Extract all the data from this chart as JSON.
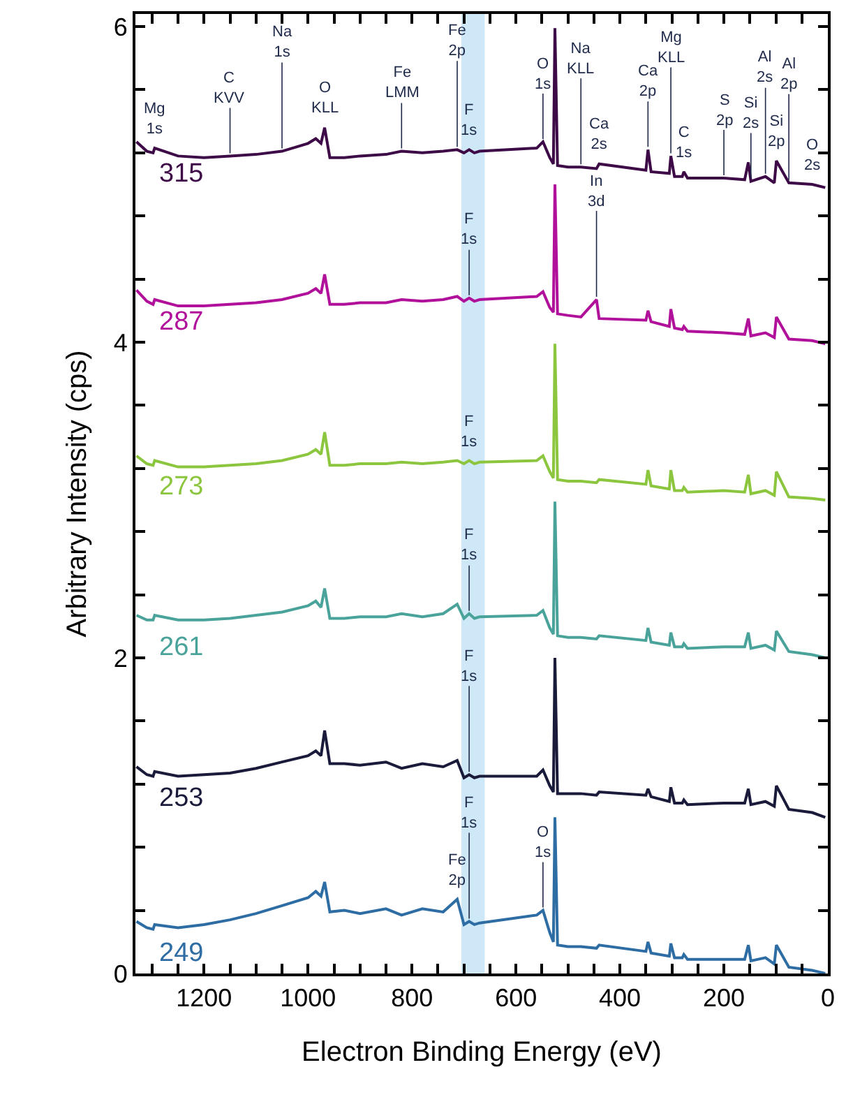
{
  "chart_data": {
    "type": "line",
    "xlabel": "Electron Binding Energy (eV)",
    "ylabel": "Arbitrary Intensity (cps)",
    "xlim": [
      1332,
      0
    ],
    "ylim": [
      0,
      6.08
    ],
    "xticks": [
      {
        "value": 1300,
        "label": null
      },
      {
        "value": 1250,
        "label": null
      },
      1200,
      {
        "value": 1150,
        "label": null
      },
      {
        "value": 1100,
        "label": null
      },
      {
        "value": 1050,
        "label": null
      },
      1000,
      {
        "value": 950,
        "label": null
      },
      {
        "value": 900,
        "label": null
      },
      {
        "value": 850,
        "label": null
      },
      800,
      {
        "value": 750,
        "label": null
      },
      {
        "value": 700,
        "label": null
      },
      {
        "value": 650,
        "label": null
      },
      600,
      {
        "value": 550,
        "label": null
      },
      {
        "value": 500,
        "label": null
      },
      {
        "value": 450,
        "label": null
      },
      400,
      {
        "value": 350,
        "label": null
      },
      {
        "value": 300,
        "label": null
      },
      {
        "value": 250,
        "label": null
      },
      200,
      {
        "value": 150,
        "label": null
      },
      {
        "value": 100,
        "label": null
      },
      {
        "value": 50,
        "label": null
      },
      0
    ],
    "yticks": [
      0,
      {
        "value": 0.4,
        "label": null
      },
      {
        "value": 0.8,
        "label": null
      },
      {
        "value": 1.2,
        "label": null
      },
      {
        "value": 1.6,
        "label": null
      },
      2,
      {
        "value": 2.4,
        "label": null
      },
      {
        "value": 2.8,
        "label": null
      },
      {
        "value": 3.2,
        "label": null
      },
      {
        "value": 3.6,
        "label": null
      },
      4,
      {
        "value": 4.4,
        "label": null
      },
      {
        "value": 4.8,
        "label": null
      },
      {
        "value": 5.2,
        "label": null
      },
      {
        "value": 5.6,
        "label": null
      },
      6
    ],
    "grid": false,
    "legend": false,
    "marker": "none",
    "line_style": "solid",
    "x": [
      1330,
      1310,
      1298,
      1295,
      1250,
      1200,
      1150,
      1100,
      1050,
      1000,
      985,
      975,
      968,
      958,
      930,
      900,
      850,
      820,
      780,
      740,
      713,
      700,
      690,
      680,
      670,
      560,
      548,
      535,
      528,
      525,
      520,
      500,
      475,
      445,
      440,
      350,
      346,
      340,
      305,
      302,
      295,
      280,
      277,
      270,
      200,
      160,
      153,
      148,
      120,
      103,
      99,
      75,
      30,
      5
    ],
    "series": [
      {
        "name": "315",
        "color": "#3d0a47",
        "values": [
          5.27,
          5.21,
          5.2,
          5.23,
          5.18,
          5.17,
          5.18,
          5.19,
          5.21,
          5.26,
          5.29,
          5.26,
          5.36,
          5.17,
          5.17,
          5.18,
          5.19,
          5.21,
          5.2,
          5.21,
          5.22,
          5.2,
          5.22,
          5.2,
          5.21,
          5.23,
          5.27,
          5.17,
          5.13,
          5.99,
          5.12,
          5.11,
          5.11,
          5.1,
          5.13,
          5.09,
          5.22,
          5.08,
          5.07,
          5.18,
          5.05,
          5.05,
          5.08,
          5.04,
          5.04,
          5.03,
          5.14,
          5.02,
          5.05,
          5.01,
          5.15,
          5.01,
          5.0,
          4.98
        ]
      },
      {
        "name": "287",
        "color": "#b0109a",
        "values": [
          4.33,
          4.26,
          4.24,
          4.27,
          4.23,
          4.23,
          4.24,
          4.25,
          4.27,
          4.31,
          4.34,
          4.31,
          4.43,
          4.24,
          4.24,
          4.25,
          4.25,
          4.27,
          4.26,
          4.27,
          4.29,
          4.26,
          4.28,
          4.26,
          4.27,
          4.29,
          4.32,
          4.22,
          4.19,
          5.0,
          4.18,
          4.17,
          4.16,
          4.27,
          4.15,
          4.14,
          4.2,
          4.13,
          4.1,
          4.21,
          4.09,
          4.08,
          4.1,
          4.07,
          4.06,
          4.05,
          4.15,
          4.04,
          4.06,
          4.03,
          4.16,
          4.02,
          4.01,
          3.99
        ]
      },
      {
        "name": "273",
        "color": "#8cc63f",
        "values": [
          3.28,
          3.23,
          3.22,
          3.25,
          3.21,
          3.21,
          3.22,
          3.23,
          3.25,
          3.29,
          3.32,
          3.29,
          3.43,
          3.22,
          3.22,
          3.23,
          3.23,
          3.24,
          3.23,
          3.24,
          3.25,
          3.23,
          3.25,
          3.23,
          3.24,
          3.25,
          3.28,
          3.18,
          3.14,
          3.99,
          3.13,
          3.12,
          3.12,
          3.11,
          3.13,
          3.1,
          3.19,
          3.09,
          3.07,
          3.19,
          3.06,
          3.06,
          3.08,
          3.05,
          3.06,
          3.05,
          3.16,
          3.04,
          3.06,
          3.03,
          3.18,
          3.02,
          3.01,
          3.0
        ]
      },
      {
        "name": "261",
        "color": "#4aa39a",
        "values": [
          2.27,
          2.24,
          2.24,
          2.27,
          2.24,
          2.24,
          2.25,
          2.27,
          2.29,
          2.33,
          2.36,
          2.32,
          2.44,
          2.25,
          2.25,
          2.26,
          2.26,
          2.28,
          2.26,
          2.28,
          2.34,
          2.25,
          2.28,
          2.25,
          2.26,
          2.27,
          2.3,
          2.19,
          2.15,
          2.99,
          2.14,
          2.13,
          2.13,
          2.12,
          2.14,
          2.11,
          2.19,
          2.1,
          2.08,
          2.16,
          2.07,
          2.07,
          2.09,
          2.06,
          2.07,
          2.07,
          2.16,
          2.06,
          2.08,
          2.05,
          2.17,
          2.04,
          2.02,
          2.0
        ]
      },
      {
        "name": "253",
        "color": "#1a1a3a",
        "values": [
          1.31,
          1.26,
          1.25,
          1.28,
          1.25,
          1.26,
          1.27,
          1.3,
          1.34,
          1.38,
          1.41,
          1.38,
          1.54,
          1.33,
          1.33,
          1.32,
          1.34,
          1.3,
          1.33,
          1.31,
          1.35,
          1.24,
          1.26,
          1.24,
          1.25,
          1.25,
          1.29,
          1.19,
          1.15,
          2.0,
          1.14,
          1.14,
          1.14,
          1.13,
          1.15,
          1.13,
          1.17,
          1.12,
          1.09,
          1.18,
          1.08,
          1.08,
          1.1,
          1.07,
          1.08,
          1.08,
          1.17,
          1.07,
          1.09,
          1.06,
          1.19,
          1.04,
          1.02,
          0.99
        ]
      },
      {
        "name": "249",
        "color": "#2e6da4",
        "values": [
          0.33,
          0.29,
          0.28,
          0.31,
          0.29,
          0.31,
          0.34,
          0.38,
          0.43,
          0.48,
          0.52,
          0.49,
          0.58,
          0.39,
          0.4,
          0.38,
          0.41,
          0.37,
          0.41,
          0.39,
          0.47,
          0.31,
          0.33,
          0.31,
          0.32,
          0.37,
          0.4,
          0.26,
          0.2,
          0.99,
          0.18,
          0.17,
          0.17,
          0.16,
          0.18,
          0.14,
          0.2,
          0.13,
          0.11,
          0.19,
          0.1,
          0.1,
          0.12,
          0.09,
          0.09,
          0.09,
          0.18,
          0.08,
          0.1,
          0.06,
          0.18,
          0.04,
          0.02,
          0.0
        ]
      }
    ],
    "bands": [
      {
        "axis": "x",
        "from": 705,
        "to": 660,
        "color": "#cfe8f8"
      }
    ],
    "annotations": [
      {
        "text": "Mg\n1s",
        "x": 1295,
        "y": 5.23
      },
      {
        "text": "C\nKVV",
        "x": 1150,
        "y": 5.18
      },
      {
        "text": "Na\n1s",
        "x": 1050,
        "y": 5.21
      },
      {
        "text": "O\nKLL",
        "x": 968,
        "y": 5.36
      },
      {
        "text": "Fe\nLMM",
        "x": 820,
        "y": 5.21
      },
      {
        "text": "Fe\n2p",
        "x": 713,
        "y": 5.22
      },
      {
        "text": "F\n1s",
        "x": 690,
        "y": 5.22
      },
      {
        "text": "O\n1s",
        "x": 548,
        "y": 5.27
      },
      {
        "text": "Na\nKLL",
        "x": 475,
        "y": 5.11
      },
      {
        "text": "Ca\n2s",
        "x": 440,
        "y": 5.13
      },
      {
        "text": "Ca\n2p",
        "x": 346,
        "y": 5.22
      },
      {
        "text": "Mg\nKLL",
        "x": 302,
        "y": 5.18
      },
      {
        "text": "C\n1s",
        "x": 277,
        "y": 5.08
      },
      {
        "text": "S\n2p",
        "x": 200,
        "y": 5.04
      },
      {
        "text": "Al\n2s",
        "x": 120,
        "y": 5.05
      },
      {
        "text": "Si\n2p",
        "x": 99,
        "y": 5.15
      },
      {
        "text": "Si\n2s",
        "x": 148,
        "y": 5.02
      },
      {
        "text": "Al\n2p",
        "x": 75,
        "y": 5.01
      },
      {
        "text": "O\n2s",
        "x": 30,
        "y": 5.0
      },
      {
        "text": "F\n1s",
        "x": 690,
        "y": 4.28
      },
      {
        "text": "In\n3d",
        "x": 445,
        "y": 4.27
      },
      {
        "text": "F\n1s",
        "x": 690,
        "y": 3.25
      },
      {
        "text": "F\n1s",
        "x": 690,
        "y": 2.28
      },
      {
        "text": "F\n1s",
        "x": 690,
        "y": 1.26
      },
      {
        "text": "Fe\n2p",
        "x": 713,
        "y": 0.47
      },
      {
        "text": "O\n1s",
        "x": 548,
        "y": 0.4
      },
      {
        "text": "F\n1s",
        "x": 690,
        "y": 0.33
      }
    ]
  }
}
